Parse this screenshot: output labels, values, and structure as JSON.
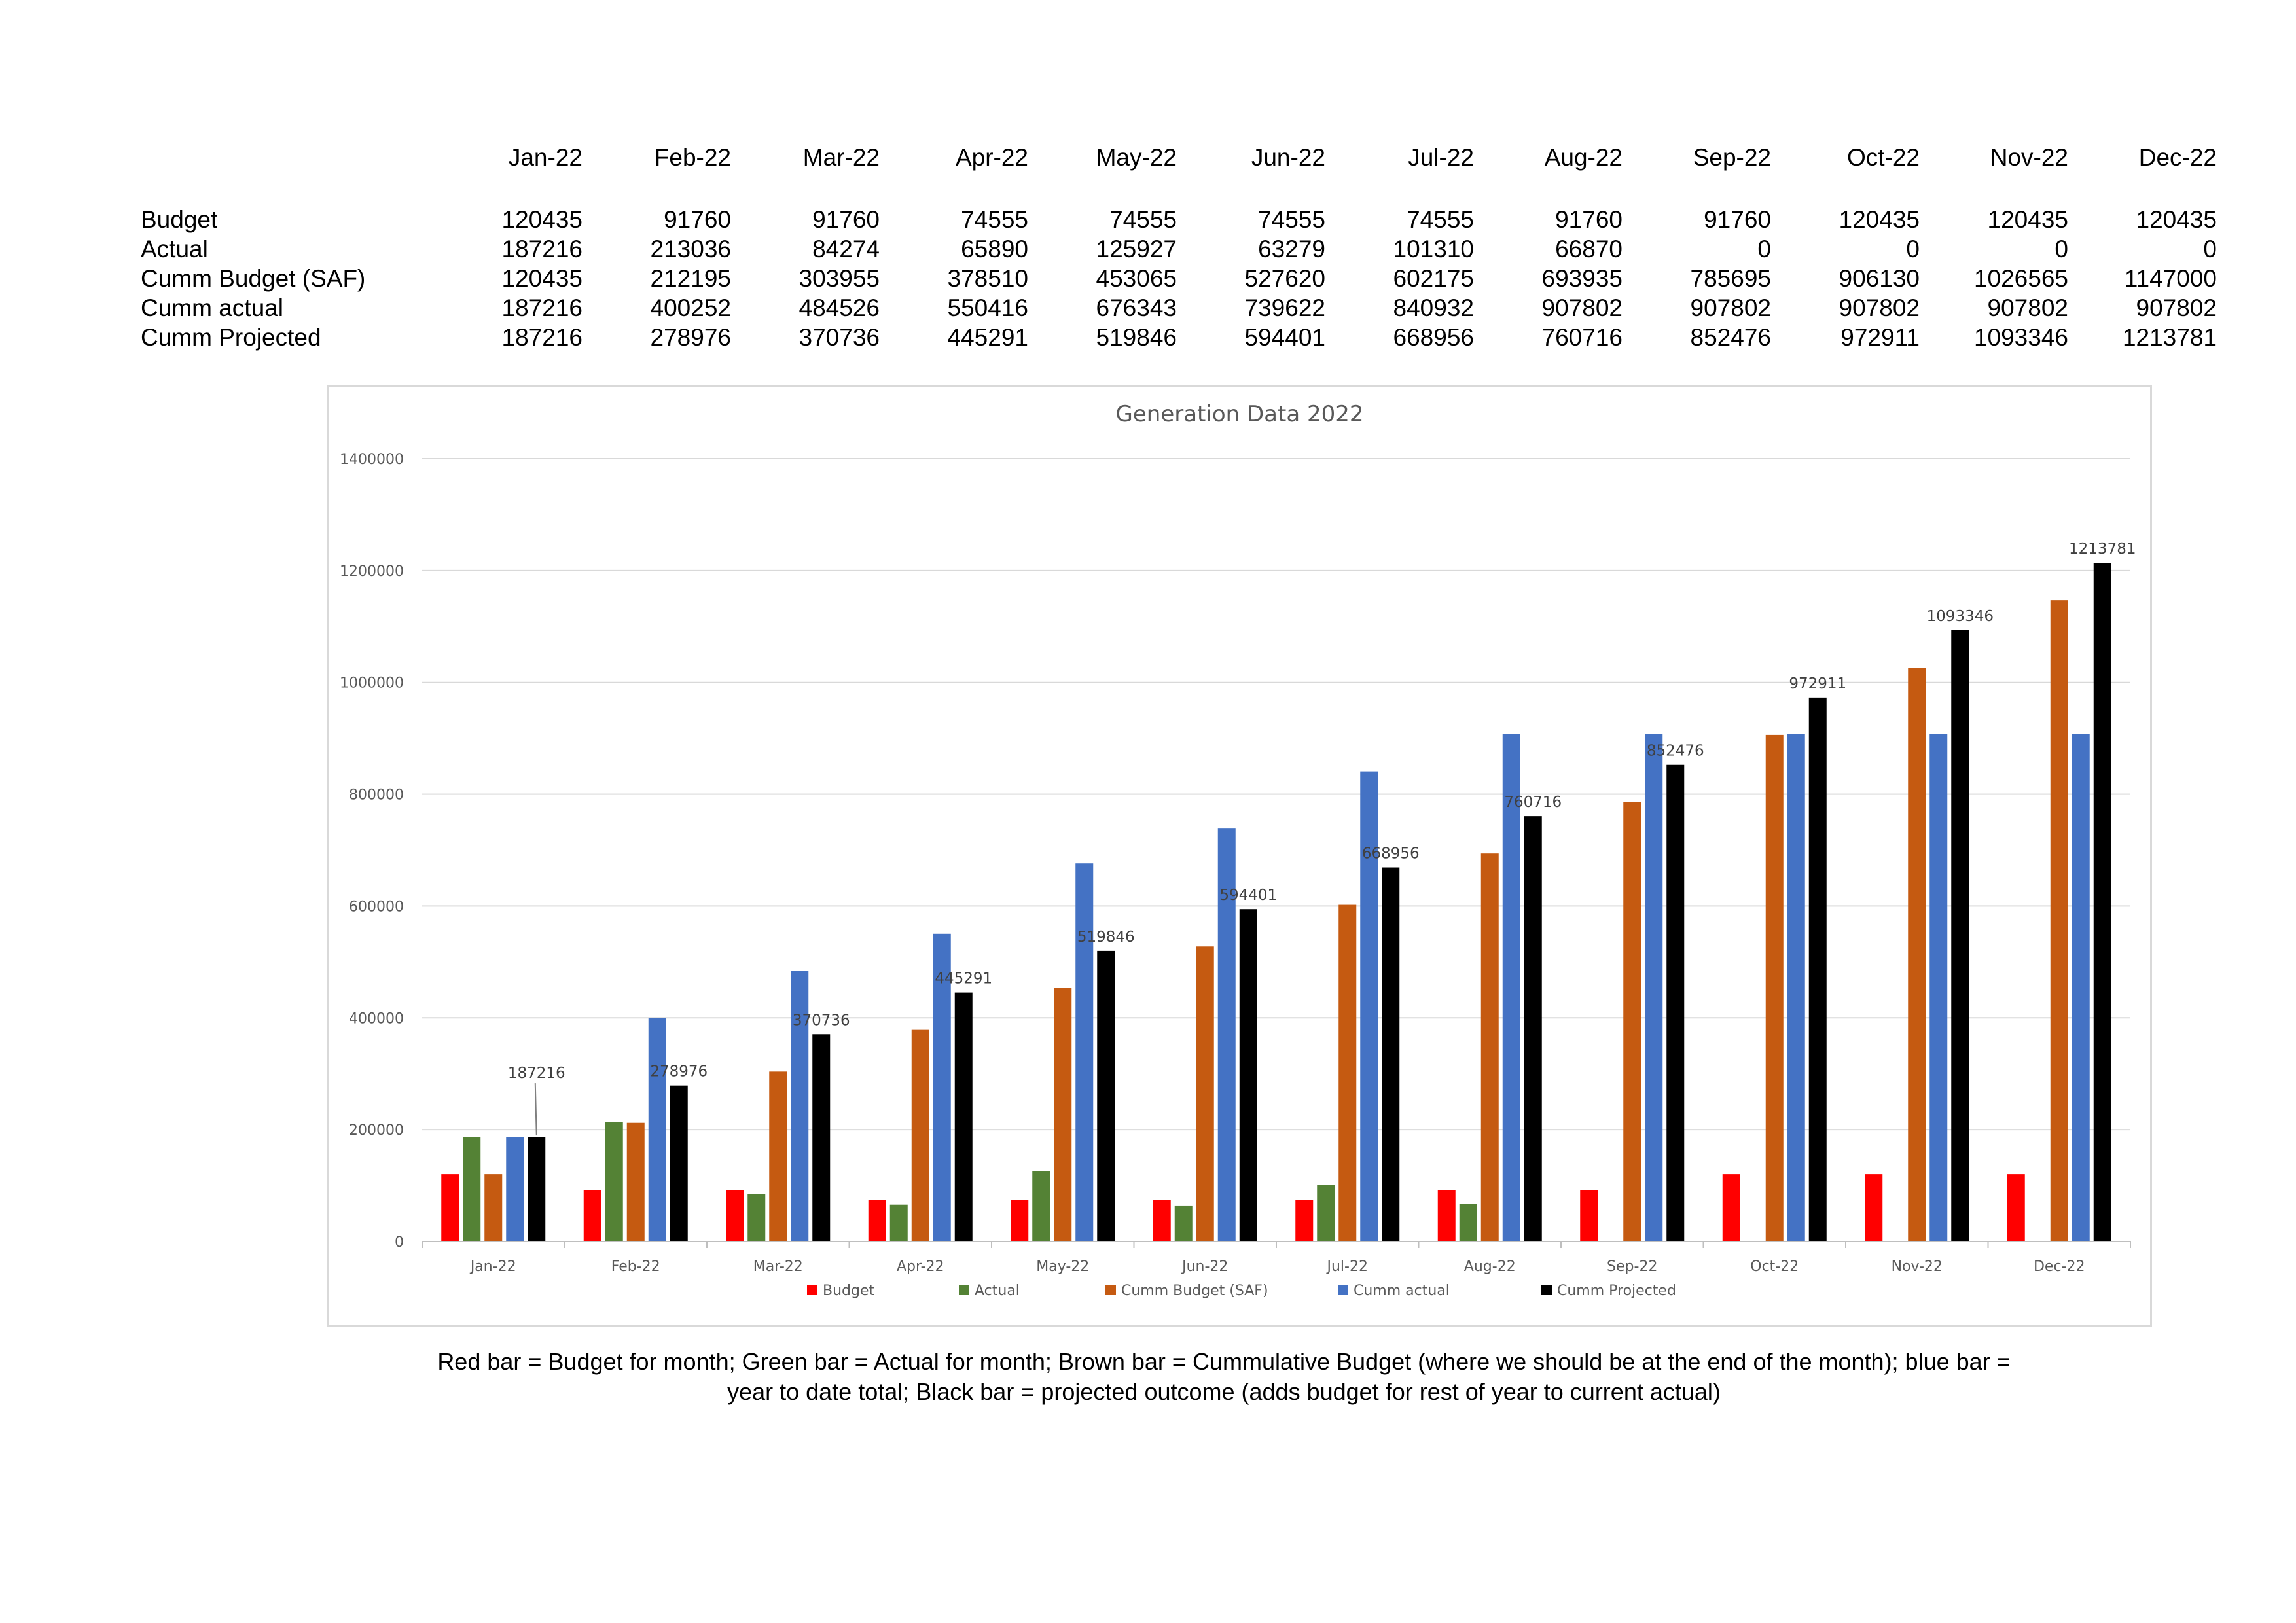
{
  "table": {
    "months": [
      "Jan-22",
      "Feb-22",
      "Mar-22",
      "Apr-22",
      "May-22",
      "Jun-22",
      "Jul-22",
      "Aug-22",
      "Sep-22",
      "Oct-22",
      "Nov-22",
      "Dec-22"
    ],
    "rows": [
      {
        "label": "Budget",
        "values": [
          "120435",
          "91760",
          "91760",
          "74555",
          "74555",
          "74555",
          "74555",
          "91760",
          "91760",
          "120435",
          "120435",
          "120435"
        ]
      },
      {
        "label": "Actual",
        "values": [
          "187216",
          "213036",
          "84274",
          "65890",
          "125927",
          "63279",
          "101310",
          "66870",
          "0",
          "0",
          "0",
          "0"
        ]
      },
      {
        "label": "Cumm  Budget (SAF)",
        "values": [
          "120435",
          "212195",
          "303955",
          "378510",
          "453065",
          "527620",
          "602175",
          "693935",
          "785695",
          "906130",
          "1026565",
          "1147000"
        ]
      },
      {
        "label": "Cumm actual",
        "values": [
          "187216",
          "400252",
          "484526",
          "550416",
          "676343",
          "739622",
          "840932",
          "907802",
          "907802",
          "907802",
          "907802",
          "907802"
        ]
      },
      {
        "label": "Cumm Projected",
        "values": [
          "187216",
          "278976",
          "370736",
          "445291",
          "519846",
          "594401",
          "668956",
          "760716",
          "852476",
          "972911",
          "1093346",
          "1213781"
        ]
      }
    ]
  },
  "chart_data": {
    "type": "bar",
    "title": "Generation Data 2022",
    "categories": [
      "Jan-22",
      "Feb-22",
      "Mar-22",
      "Apr-22",
      "May-22",
      "Jun-22",
      "Jul-22",
      "Aug-22",
      "Sep-22",
      "Oct-22",
      "Nov-22",
      "Dec-22"
    ],
    "ylim": [
      0,
      1400000
    ],
    "yticks": [
      0,
      200000,
      400000,
      600000,
      800000,
      1000000,
      1200000,
      1400000
    ],
    "grid": true,
    "legend_position": "bottom",
    "series": [
      {
        "name": "Budget",
        "color": "#ff0000",
        "values": [
          120435,
          91760,
          91760,
          74555,
          74555,
          74555,
          74555,
          91760,
          91760,
          120435,
          120435,
          120435
        ]
      },
      {
        "name": "Actual",
        "color": "#548235",
        "values": [
          187216,
          213036,
          84274,
          65890,
          125927,
          63279,
          101310,
          66870,
          0,
          0,
          0,
          0
        ]
      },
      {
        "name": "Cumm  Budget (SAF)",
        "color": "#c55a11",
        "values": [
          120435,
          212195,
          303955,
          378510,
          453065,
          527620,
          602175,
          693935,
          785695,
          906130,
          1026565,
          1147000
        ]
      },
      {
        "name": "Cumm actual",
        "color": "#4472c4",
        "values": [
          187216,
          400252,
          484526,
          550416,
          676343,
          739622,
          840932,
          907802,
          907802,
          907802,
          907802,
          907802
        ]
      },
      {
        "name": "Cumm Projected",
        "color": "#000000",
        "values": [
          187216,
          278976,
          370736,
          445291,
          519846,
          594401,
          668956,
          760716,
          852476,
          972911,
          1093346,
          1213781
        ],
        "data_labels": true
      }
    ]
  },
  "caption": {
    "line1": "Red bar = Budget for month; Green bar = Actual for month; Brown bar = Cummulative Budget (where we should be at the end of the month); blue bar =",
    "line2": "year to date total; Black bar = projected outcome (adds budget for rest of year to current actual)"
  }
}
